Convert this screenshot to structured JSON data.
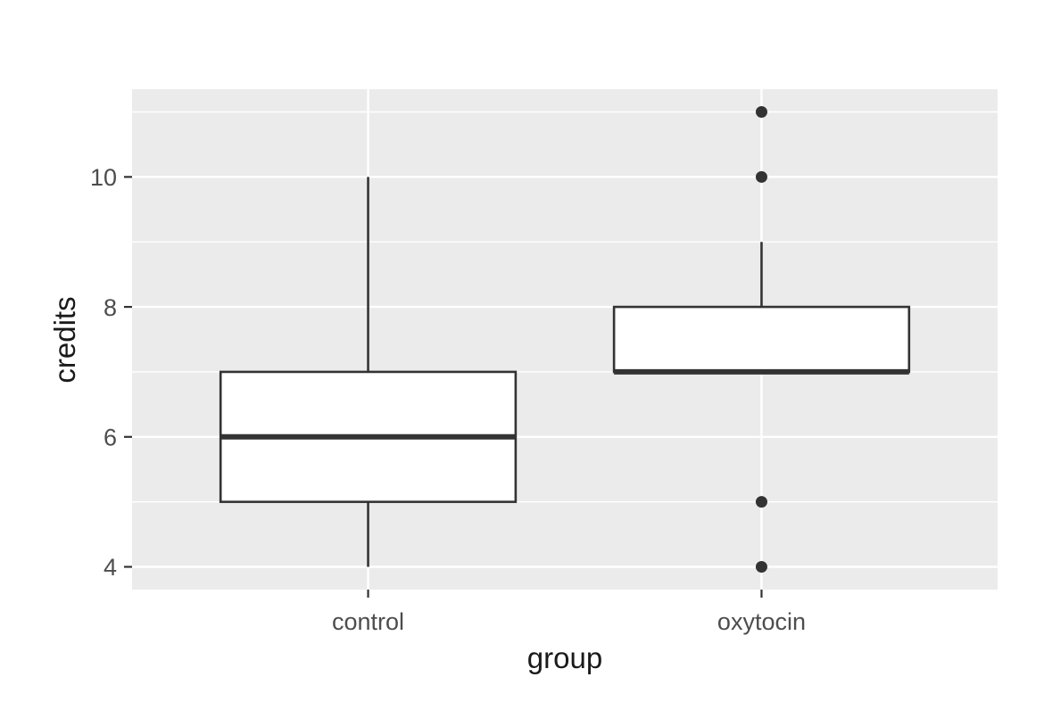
{
  "chart_data": {
    "type": "boxplot",
    "title": "",
    "xlabel": "group",
    "ylabel": "credits",
    "categories": [
      "control",
      "oxytocin"
    ],
    "series": [
      {
        "name": "control",
        "whisker_low": 4,
        "q1": 5,
        "median": 6,
        "q3": 7,
        "whisker_high": 10,
        "outliers": []
      },
      {
        "name": "oxytocin",
        "whisker_low": 7,
        "q1": 7,
        "median": 7,
        "q3": 8,
        "whisker_high": 9,
        "outliers": [
          11,
          10,
          5,
          4
        ]
      }
    ],
    "y_axis": {
      "tick_labels": [
        4,
        6,
        8,
        10
      ],
      "minor_gridlines": [
        5,
        7,
        9,
        11
      ],
      "ylim": [
        3.65,
        11.35
      ]
    },
    "x_axis": {
      "xlim": [
        0.4,
        2.6
      ],
      "category_positions": [
        1,
        2
      ],
      "box_width": 0.75
    },
    "grid": "major and minor horizontal white lines, vertical white line per category, on gray panel",
    "legend": "none",
    "colors": {
      "outer_background": "#FFFFFF",
      "panel_background": "#EBEBEB",
      "gridline": "#FFFFFF",
      "box_stroke": "#333333",
      "box_fill": "#FFFFFF",
      "outlier_point": "#333333",
      "tick_mark": "#333333",
      "tick_label": "#4D4D4D",
      "axis_title": "#1A1A1A"
    }
  }
}
